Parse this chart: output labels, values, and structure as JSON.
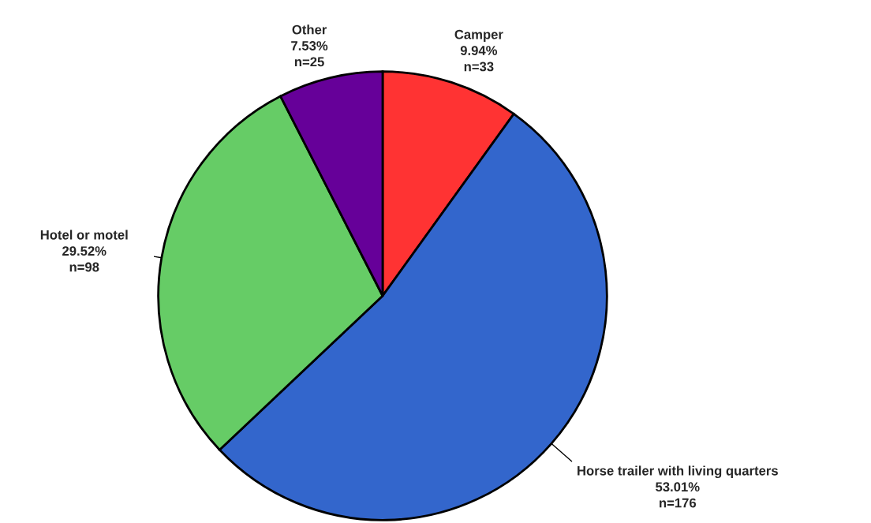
{
  "chart_data": {
    "type": "pie",
    "categories": [
      "Camper",
      "Horse trailer with living quarters",
      "Hotel or motel",
      "Other"
    ],
    "values": [
      33,
      176,
      98,
      25
    ],
    "value_labels": [
      "9.94%\nn=33",
      "53.01%\nn=176",
      "29.52%\nn=98",
      "7.53%\nn=25"
    ],
    "colors": [
      "#ff3333",
      "#3366cc",
      "#66cc66",
      "#660099"
    ],
    "legend": false
  }
}
